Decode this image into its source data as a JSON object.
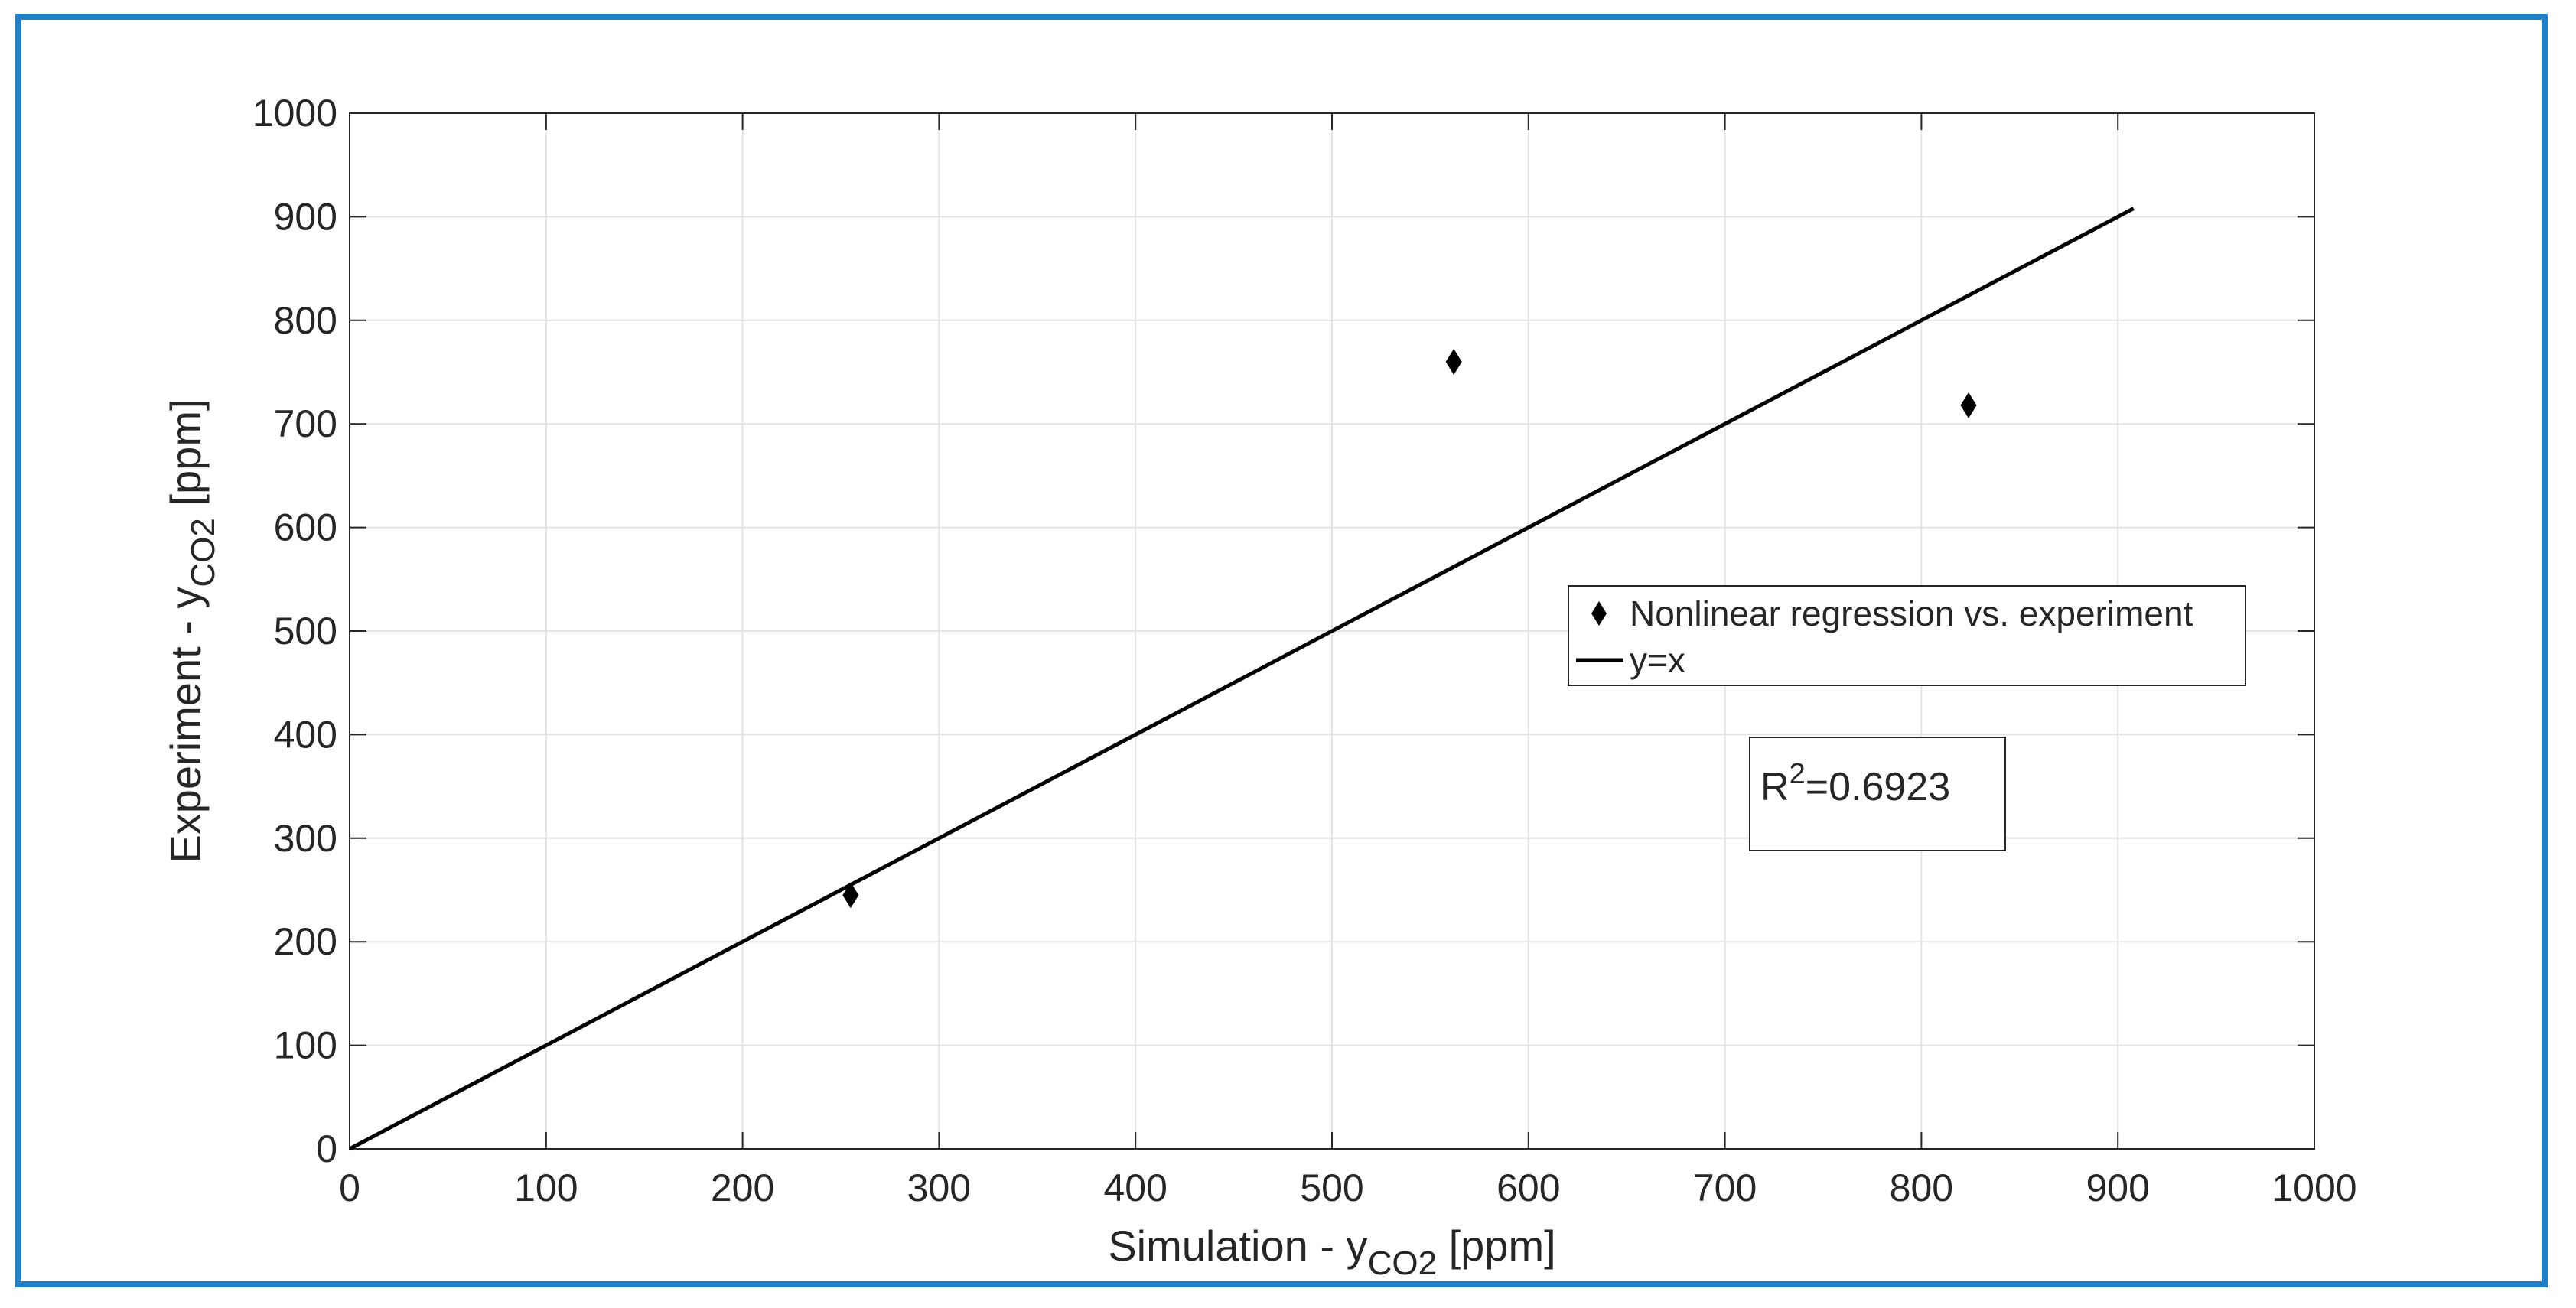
{
  "chart_data": {
    "type": "scatter",
    "title": "",
    "xlabel": {
      "main": "Simulation - y",
      "sub": "CO2",
      "unit": " [ppm]"
    },
    "ylabel": {
      "main": "Experiment - y",
      "sub": "CO2",
      "unit": " [ppm]"
    },
    "xlim": [
      0,
      1000
    ],
    "ylim": [
      0,
      1000
    ],
    "xticks": [
      "0",
      "100",
      "200",
      "300",
      "400",
      "500",
      "600",
      "700",
      "800",
      "900",
      "1000"
    ],
    "yticks": [
      "0",
      "100",
      "200",
      "300",
      "400",
      "500",
      "600",
      "700",
      "800",
      "900",
      "1000"
    ],
    "grid": true,
    "series": [
      {
        "name": "Nonlinear regression vs. experiment",
        "marker": "diamond",
        "color": "#000000",
        "points": [
          {
            "x": 255,
            "y": 245
          },
          {
            "x": 562,
            "y": 760
          },
          {
            "x": 824,
            "y": 718
          }
        ]
      },
      {
        "name": "y=x",
        "type": "line",
        "color": "#000000",
        "points": [
          {
            "x": 0,
            "y": 0
          },
          {
            "x": 908,
            "y": 908
          }
        ]
      }
    ],
    "legend_position": "right-middle",
    "annotation": {
      "base": "R",
      "sup": "2",
      "rest": "=0.6923"
    }
  }
}
